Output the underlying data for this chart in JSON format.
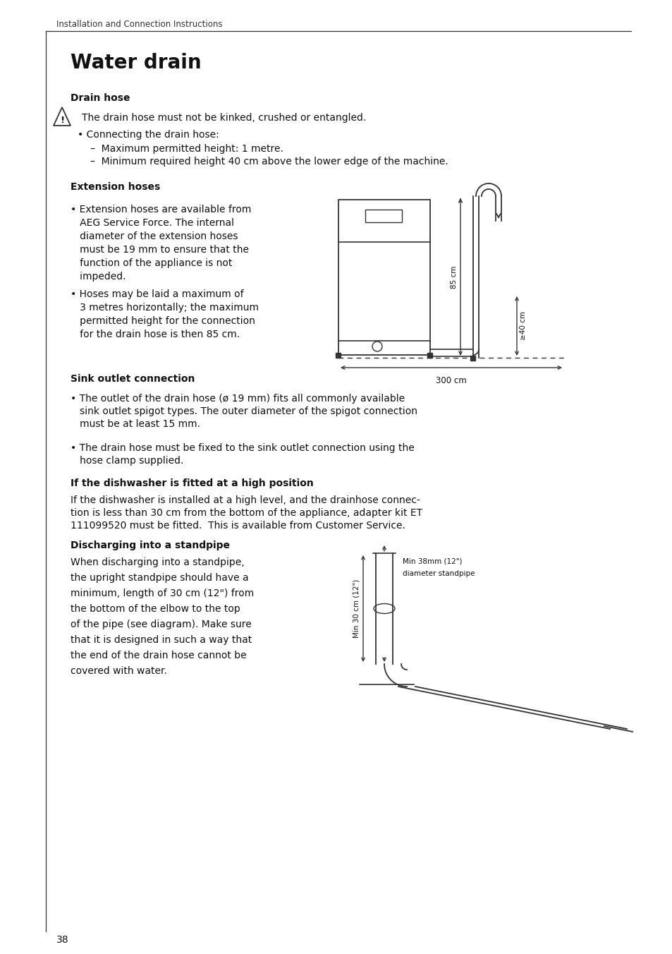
{
  "bg_color": "#ffffff",
  "text_color": "#111111",
  "header_text": "Installation and Connection Instructions",
  "title": "Water drain",
  "section1_head": "Drain hose",
  "warning_text": "The drain hose must not be kinked, crushed or entangled.",
  "bullet1_head": "• Connecting the drain hose:",
  "bullet1_sub1": "–  Maximum permitted height: 1 metre.",
  "bullet1_sub2": "–  Minimum required height 40 cm above the lower edge of the machine.",
  "section2_head": "Extension hoses",
  "ext1_line1": "• Extension hoses are available from",
  "ext1_line2": "   AEG Service Force. The internal",
  "ext1_line3": "   diameter of the extension hoses",
  "ext1_line4": "   must be 19 mm to ensure that the",
  "ext1_line5": "   function of the appliance is not",
  "ext1_line6": "   impeded.",
  "ext2_line1": "• Hoses may be laid a maximum of",
  "ext2_line2": "   3 metres horizontally; the maximum",
  "ext2_line3": "   permitted height for the connection",
  "ext2_line4": "   for the drain hose is then 85 cm.",
  "section3_head": "Sink outlet connection",
  "sink1_line1": "• The outlet of the drain hose (ø 19 mm) fits all commonly available",
  "sink1_line2": "   sink outlet spigot types. The outer diameter of the spigot connection",
  "sink1_line3": "   must be at least 15 mm.",
  "sink2_line1": "• The drain hose must be fixed to the sink outlet connection using the",
  "sink2_line2": "   hose clamp supplied.",
  "section4_head": "If the dishwasher is fitted at a high position",
  "high1": "If the dishwasher is installed at a high level, and the drainhose connec-",
  "high2": "tion is less than 30 cm from the bottom of the appliance, adapter kit ET",
  "high3": "111099520 must be fitted.  This is available from Customer Service.",
  "section5_head": "Discharging into a standpipe",
  "sp1": "When discharging into a standpipe,",
  "sp2": "the upright standpipe should have a",
  "sp3": "minimum, length of 30 cm (12\") from",
  "sp4": "the bottom of the elbow to the top",
  "sp5": "of the pipe (see diagram). Make sure",
  "sp6": "that it is designed in such a way that",
  "sp7": "the end of the drain hose cannot be",
  "sp8": "covered with water.",
  "page_number": "38"
}
